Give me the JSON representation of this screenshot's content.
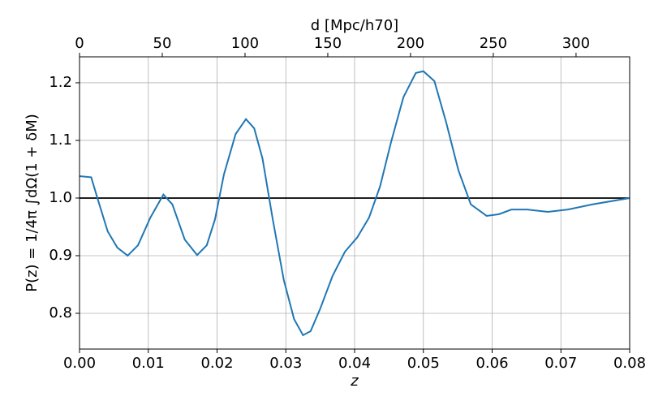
{
  "chart_data": {
    "type": "line",
    "xlabel": "z",
    "ylabel": "P(z) = 1/4π ∫dΩ(1 + δM)",
    "x2label": "d [Mpc/h70]",
    "x": [
      0,
      0.0017,
      0.0026,
      0.0041,
      0.0055,
      0.007,
      0.0085,
      0.0103,
      0.0122,
      0.0135,
      0.0153,
      0.0171,
      0.0185,
      0.0197,
      0.021,
      0.0227,
      0.0242,
      0.0254,
      0.0266,
      0.0281,
      0.0297,
      0.0312,
      0.0325,
      0.0336,
      0.035,
      0.0368,
      0.0386,
      0.0404,
      0.0421,
      0.0437,
      0.0453,
      0.0471,
      0.0489,
      0.05,
      0.0516,
      0.0533,
      0.0551,
      0.0569,
      0.0592,
      0.061,
      0.0628,
      0.0651,
      0.0681,
      0.071,
      0.0746,
      0.08
    ],
    "series": [
      {
        "color": "#1f77b4",
        "values": [
          1.038,
          1.036,
          1.0,
          0.942,
          0.914,
          0.9,
          0.918,
          0.966,
          1.006,
          0.989,
          0.928,
          0.901,
          0.918,
          0.963,
          1.041,
          1.111,
          1.137,
          1.121,
          1.069,
          0.963,
          0.858,
          0.79,
          0.762,
          0.769,
          0.808,
          0.865,
          0.907,
          0.932,
          0.966,
          1.02,
          1.097,
          1.175,
          1.217,
          1.22,
          1.203,
          1.132,
          1.048,
          0.989,
          0.969,
          0.972,
          0.98,
          0.98,
          0.976,
          0.98,
          0.989,
          1.0
        ]
      }
    ],
    "hline": 1.0,
    "hline_color": "#000000",
    "xlim": [
      0,
      0.08
    ],
    "xticks": [
      {
        "value": 0,
        "label": "0.00"
      },
      {
        "value": 0.01,
        "label": "0.01"
      },
      {
        "value": 0.02,
        "label": "0.02"
      },
      {
        "value": 0.03,
        "label": "0.03"
      },
      {
        "value": 0.04,
        "label": "0.04"
      },
      {
        "value": 0.05,
        "label": "0.05"
      },
      {
        "value": 0.06,
        "label": "0.06"
      },
      {
        "value": 0.07,
        "label": "0.07"
      },
      {
        "value": 0.08,
        "label": "0.08"
      }
    ],
    "ylim": [
      0.738,
      1.245
    ],
    "yticks": [
      0.8,
      0.9,
      {
        "value": 1,
        "label": "1.0"
      },
      1.1,
      1.2
    ],
    "x2lim": [
      0,
      332.4
    ],
    "x2ticks": [
      0,
      50,
      100,
      150,
      200,
      250,
      300
    ],
    "grid": true
  }
}
